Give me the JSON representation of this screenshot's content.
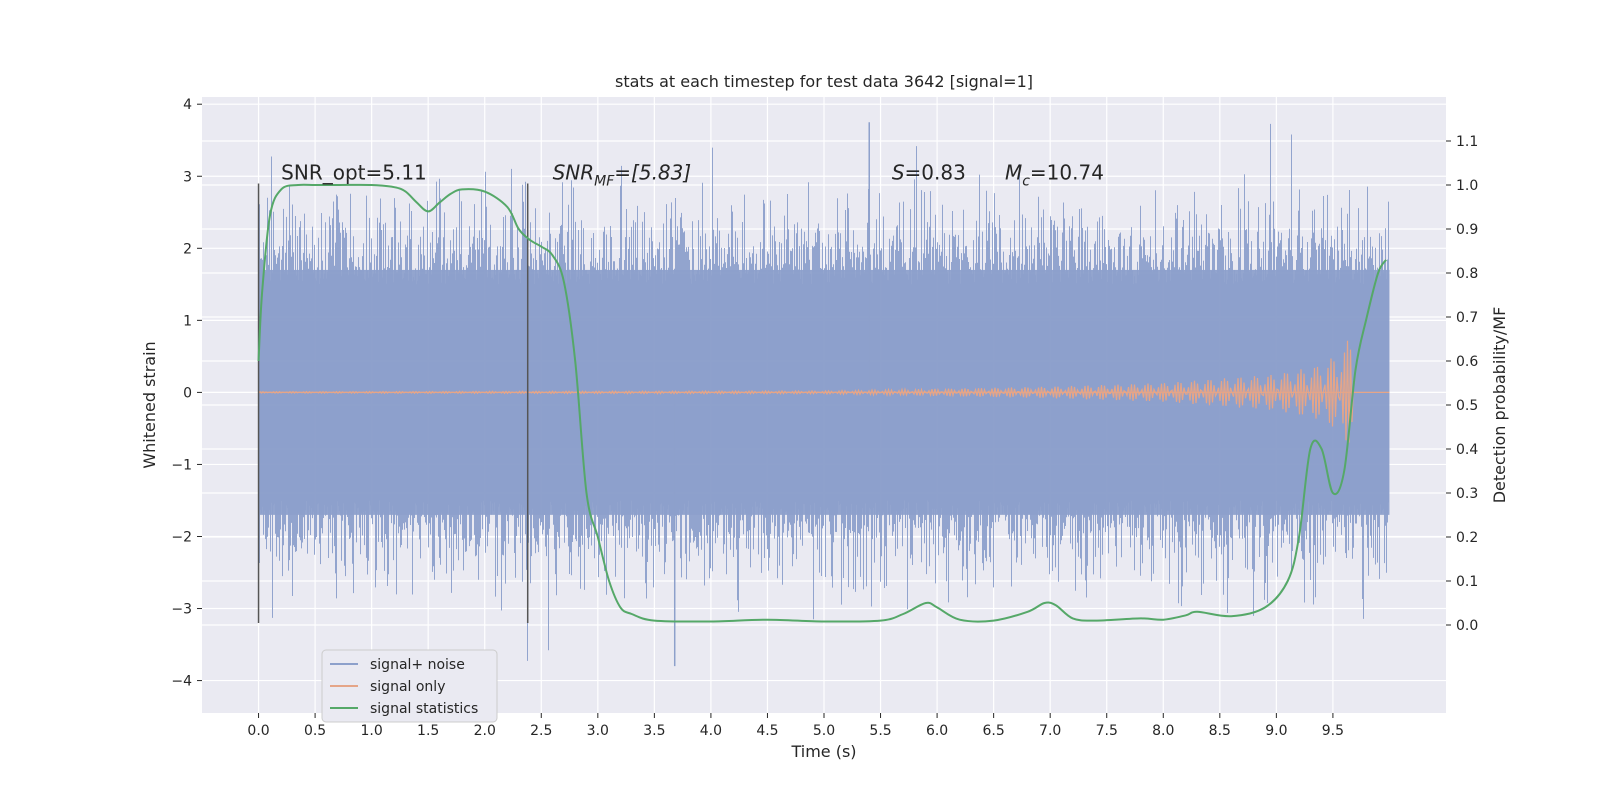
{
  "chart_data": {
    "type": "line",
    "title": "stats at each timestep for test data 3642 [signal=1]",
    "xlabel": "Time (s)",
    "ylabel_left": "Whitened strain",
    "ylabel_right": "Detection probability/MF",
    "xlim": [
      -0.5,
      10.5
    ],
    "ylim_left": [
      -4.45,
      4.1
    ],
    "ylim_right": [
      -0.2,
      1.2
    ],
    "grid": true,
    "x_ticks": [
      "0.0",
      "0.5",
      "1.0",
      "1.5",
      "2.0",
      "2.5",
      "3.0",
      "3.5",
      "4.0",
      "4.5",
      "5.0",
      "5.5",
      "6.0",
      "6.5",
      "7.0",
      "7.5",
      "8.0",
      "8.5",
      "9.0",
      "9.5"
    ],
    "y_left_ticks": [
      "4",
      "3",
      "2",
      "1",
      "0",
      "−1",
      "−2",
      "−3",
      "−4"
    ],
    "y_right_ticks": [
      "1.1",
      "1.0",
      "0.9",
      "0.8",
      "0.7",
      "0.6",
      "0.5",
      "0.4",
      "0.3",
      "0.2",
      "0.1",
      "0.0"
    ],
    "annotations": [
      {
        "label": "SNR_opt=5.11",
        "x": 0.2,
        "y": 3.05
      },
      {
        "label": "SNR",
        "sub": "MF",
        "suffix": "=[5.83]",
        "x": 2.6,
        "y": 3.05,
        "italic": true
      },
      {
        "label": "S",
        "suffix": "=0.83",
        "x": 5.6,
        "y": 3.05,
        "italic": true
      },
      {
        "label": "M",
        "sub": "c",
        "suffix": "=10.74",
        "x": 6.6,
        "y": 3.05,
        "italic": true
      }
    ],
    "vlines": [
      {
        "x": 0.0,
        "ymin": -3.2,
        "ymax": 2.9
      },
      {
        "x": 2.38,
        "ymin": -3.2,
        "ymax": 2.9
      }
    ],
    "series": [
      {
        "name": "signal+ noise",
        "color": "#8da0cb",
        "axis": "left",
        "kind": "noise",
        "x_range": [
          0.0,
          10.0
        ],
        "band_low": -1.7,
        "band_high": 1.7,
        "max_peak": 3.75,
        "min_peak": -3.8
      },
      {
        "name": "signal only",
        "color": "#e5a588",
        "axis": "left",
        "kind": "chirp",
        "x_range": [
          0.0,
          9.7
        ],
        "envelope": [
          [
            0.0,
            0.01
          ],
          [
            5.0,
            0.02
          ],
          [
            6.0,
            0.05
          ],
          [
            7.0,
            0.08
          ],
          [
            8.0,
            0.13
          ],
          [
            9.0,
            0.25
          ],
          [
            9.4,
            0.38
          ],
          [
            9.6,
            0.6
          ],
          [
            9.68,
            0.95
          ]
        ]
      },
      {
        "name": "signal statistics",
        "color": "#55a868",
        "axis": "right",
        "x": [
          0.0,
          0.03,
          0.1,
          0.2,
          0.35,
          0.5,
          0.7,
          1.0,
          1.2,
          1.3,
          1.4,
          1.5,
          1.6,
          1.7,
          1.8,
          2.0,
          2.2,
          2.3,
          2.4,
          2.5,
          2.6,
          2.7,
          2.8,
          2.9,
          3.0,
          3.1,
          3.2,
          3.3,
          3.5,
          4.0,
          4.5,
          5.0,
          5.5,
          5.7,
          5.9,
          6.0,
          6.2,
          6.5,
          6.8,
          6.95,
          7.05,
          7.2,
          7.4,
          7.8,
          8.0,
          8.2,
          8.3,
          8.6,
          8.9,
          9.1,
          9.2,
          9.3,
          9.4,
          9.5,
          9.6,
          9.7,
          9.8,
          9.9,
          9.97
        ],
        "y": [
          0.6,
          0.75,
          0.93,
          0.99,
          1.0,
          1.0,
          1.0,
          1.0,
          0.995,
          0.985,
          0.96,
          0.94,
          0.96,
          0.98,
          0.99,
          0.985,
          0.95,
          0.9,
          0.875,
          0.86,
          0.84,
          0.78,
          0.6,
          0.3,
          0.2,
          0.1,
          0.04,
          0.025,
          0.01,
          0.008,
          0.012,
          0.008,
          0.01,
          0.025,
          0.05,
          0.04,
          0.012,
          0.01,
          0.03,
          0.05,
          0.045,
          0.015,
          0.01,
          0.015,
          0.012,
          0.022,
          0.03,
          0.02,
          0.04,
          0.1,
          0.2,
          0.4,
          0.4,
          0.3,
          0.35,
          0.58,
          0.7,
          0.8,
          0.83
        ]
      }
    ],
    "legend": {
      "position": "lower-left",
      "entries": [
        "signal+ noise",
        "signal only",
        "signal statistics"
      ]
    }
  }
}
